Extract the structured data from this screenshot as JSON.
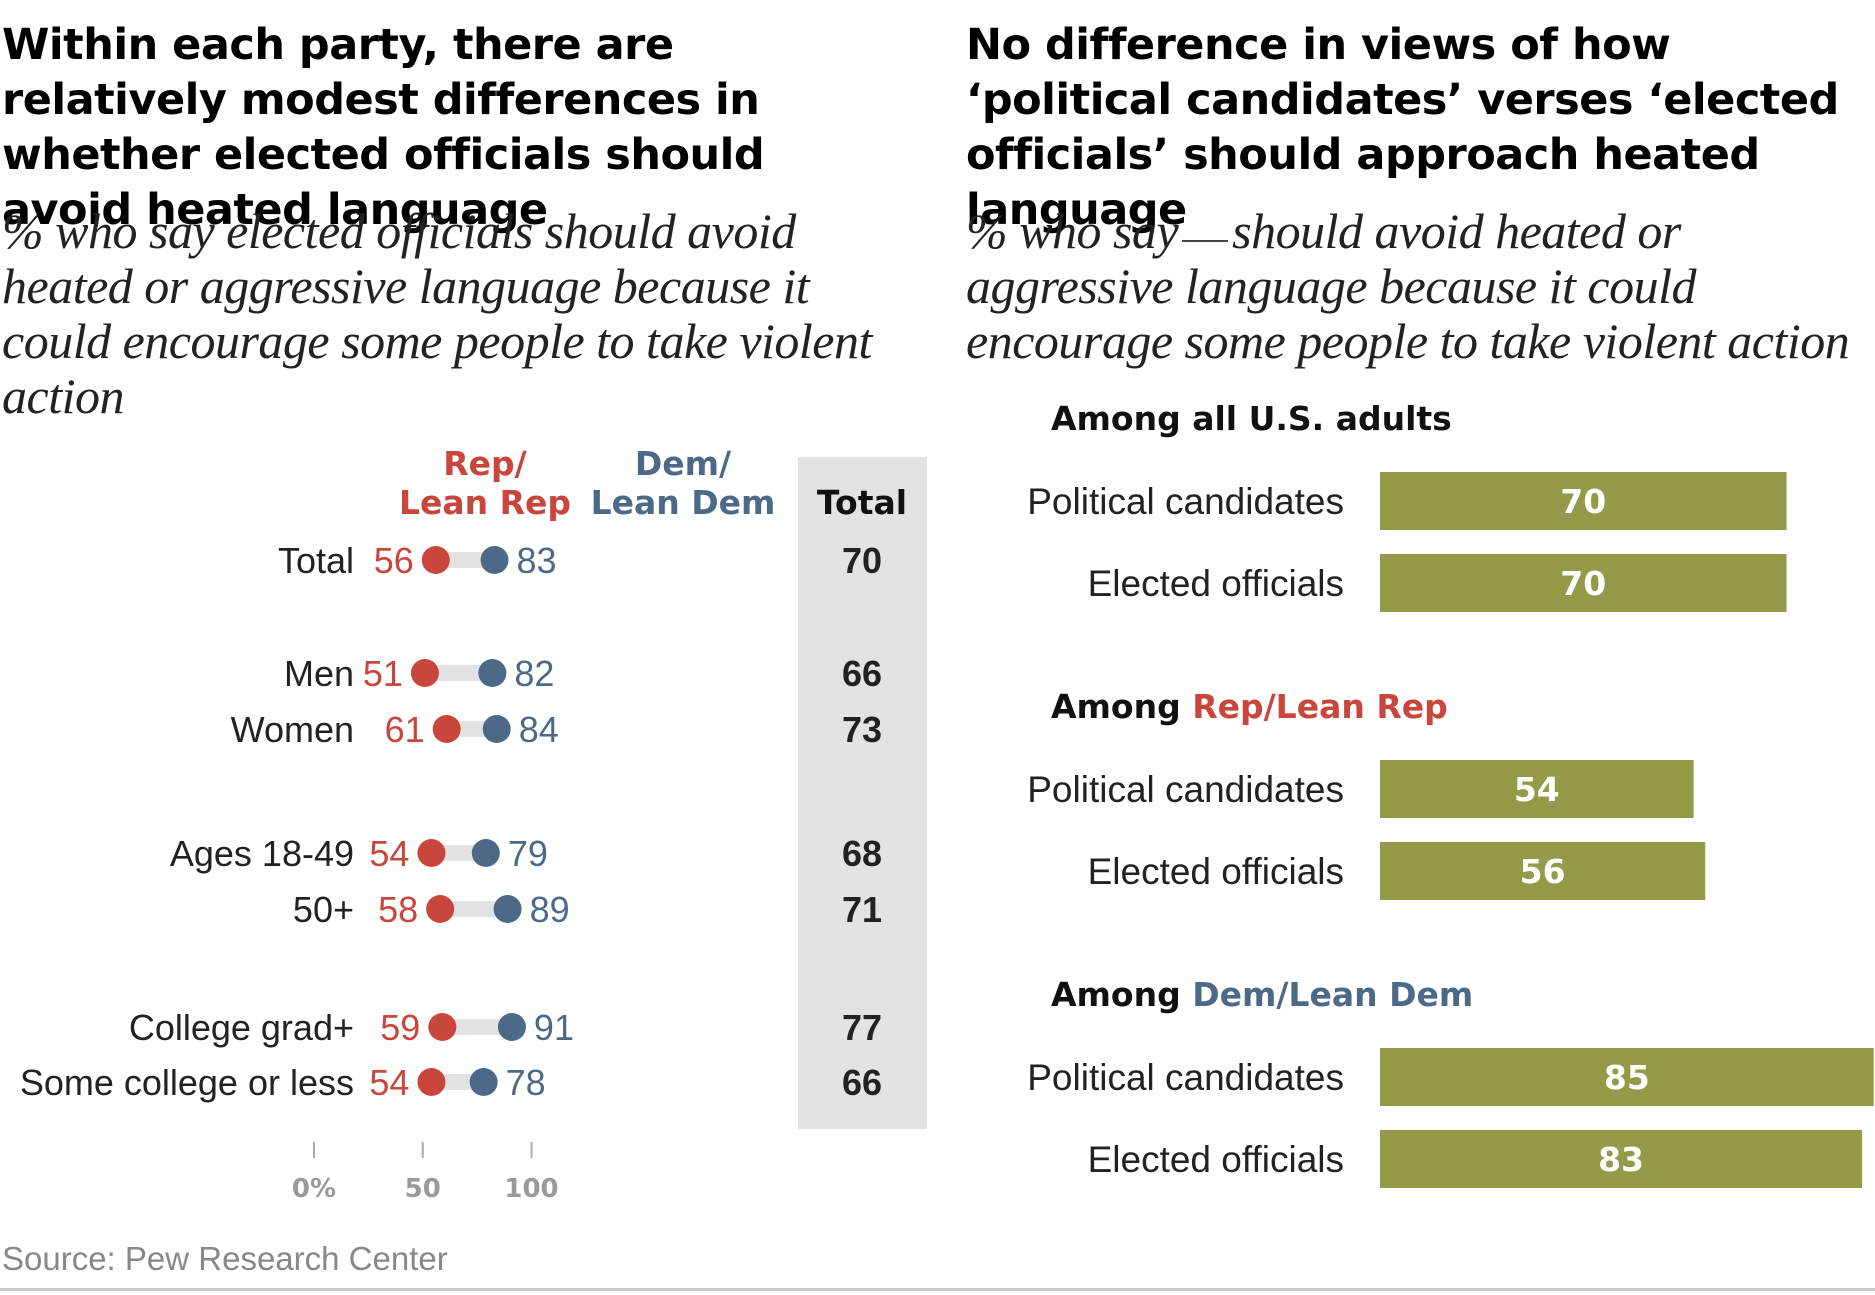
{
  "colors": {
    "rep": "#c9463d",
    "dem": "#4c6a88",
    "bar": "#949a47",
    "track": "#e3e3e3",
    "total_bg": "#e3e3e3"
  },
  "left_headline": "Within each party, there are relatively modest differences in whether elected officials should avoid heated language",
  "left_subtitle": "% who say elected officials should avoid heated or aggressive language because it could encourage some people to take violent action",
  "right_headline": "No difference in views of how ‘political candidates’ verses ‘elected officials’ should approach heated language",
  "right_subtitle_part1": "% who say",
  "right_subtitle_part2": "should avoid heated or aggressive language because it could encourage some people to take violent action",
  "source": "Source: Pew Research Center",
  "chart_data": [
    {
      "type": "dumbbell",
      "legend": {
        "rep": [
          "Rep/",
          "Lean Rep"
        ],
        "dem": [
          "Dem/",
          "Lean Dem"
        ],
        "total": "Total"
      },
      "x_ticks": [
        "0%",
        "50",
        "100"
      ],
      "xlim": [
        0,
        100
      ],
      "rows": [
        {
          "label": "Total",
          "rep": 56,
          "dem": 83,
          "total": 70
        },
        {
          "label": "Men",
          "rep": 51,
          "dem": 82,
          "total": 66
        },
        {
          "label": "Women",
          "rep": 61,
          "dem": 84,
          "total": 73
        },
        {
          "label": "Ages 18-49",
          "rep": 54,
          "dem": 79,
          "total": 68
        },
        {
          "label": "50+",
          "rep": 58,
          "dem": 89,
          "total": 71
        },
        {
          "label": "College grad+",
          "rep": 59,
          "dem": 91,
          "total": 77
        },
        {
          "label": "Some college or less",
          "rep": 54,
          "dem": 78,
          "total": 66
        }
      ]
    },
    {
      "type": "bar",
      "orientation": "horizontal",
      "groups": [
        {
          "title_prefix": "Among all U.S. adults",
          "title_highlight": "",
          "highlight_color": "",
          "bars": [
            {
              "label": "Political candidates",
              "value": 70
            },
            {
              "label": "Elected officials",
              "value": 70
            }
          ]
        },
        {
          "title_prefix": "Among ",
          "title_highlight": "Rep/Lean Rep",
          "highlight_color": "#c9463d",
          "bars": [
            {
              "label": "Political candidates",
              "value": 54
            },
            {
              "label": "Elected officials",
              "value": 56
            }
          ]
        },
        {
          "title_prefix": "Among ",
          "title_highlight": "Dem/Lean Dem",
          "highlight_color": "#4c6a88",
          "bars": [
            {
              "label": "Political candidates",
              "value": 85
            },
            {
              "label": "Elected officials",
              "value": 83
            }
          ]
        }
      ]
    }
  ]
}
